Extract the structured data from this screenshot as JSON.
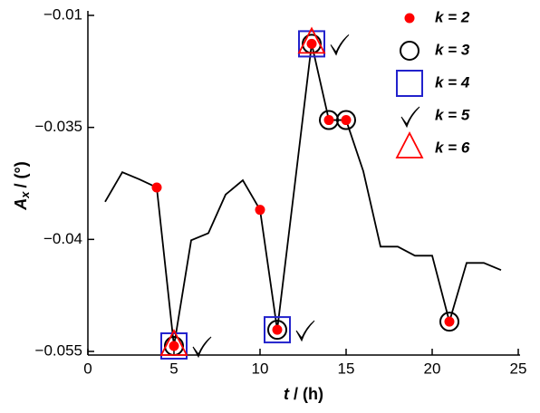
{
  "chart_data": {
    "type": "line",
    "xlabel": [
      "t",
      "/ (h)"
    ],
    "ylabel": [
      "A",
      "x",
      "/ (°)"
    ],
    "xlim": [
      0,
      25
    ],
    "xticks": [
      0,
      5,
      10,
      15,
      20,
      25
    ],
    "ylim": [
      -0.055,
      -0.01
    ],
    "yticks": [
      {
        "value": -0.055,
        "label": "−0.055"
      },
      {
        "value": -0.04,
        "label": "−0.04"
      },
      {
        "value": -0.035,
        "label": "−0.035"
      },
      {
        "value": -0.01,
        "label": "−0.01"
      }
    ],
    "legend": "upper right",
    "series": [
      {
        "color": "#000000",
        "marker": "none",
        "x": [
          1,
          2,
          3,
          4,
          5,
          6,
          7,
          8,
          9,
          10,
          11,
          12,
          13,
          14,
          15,
          16,
          17,
          18,
          19,
          20,
          21,
          22,
          23,
          24
        ],
        "values": [
          -0.03832,
          -0.037,
          -0.03732,
          -0.03768,
          -0.05427,
          -0.04012,
          -0.03972,
          -0.038,
          -0.03736,
          -0.03868,
          -0.0521,
          -0.03768,
          -0.01635,
          -0.03336,
          -0.03336,
          -0.03696,
          -0.04097,
          -0.04097,
          -0.04218,
          -0.04218,
          -0.05101,
          -0.04315,
          -0.04315,
          -0.04411
        ]
      },
      {
        "name": "k = 2",
        "marker": "dot",
        "color": "#ff0000",
        "x": [
          4,
          5,
          10,
          11,
          13,
          14,
          15,
          21
        ],
        "values": [
          -0.03768,
          -0.05427,
          -0.03868,
          -0.0521,
          -0.01635,
          -0.03336,
          -0.03336,
          -0.05101
        ]
      },
      {
        "name": "k = 3",
        "marker": "circle",
        "color": "#000000",
        "x": [
          5,
          11,
          13,
          14,
          15,
          21
        ],
        "values": [
          -0.05427,
          -0.0521,
          -0.01635,
          -0.03336,
          -0.03336,
          -0.05101
        ]
      },
      {
        "name": "k = 4",
        "marker": "square",
        "color": "#2222cc",
        "x": [
          5,
          11,
          13
        ],
        "values": [
          -0.05427,
          -0.0521,
          -0.01635
        ]
      },
      {
        "name": "k = 5",
        "marker": "check",
        "color": "#000000",
        "x": [
          5,
          11,
          13
        ],
        "values": [
          -0.05427,
          -0.0521,
          -0.01635
        ]
      },
      {
        "name": "k = 6",
        "marker": "triangle",
        "color": "#ff0000",
        "x": [
          5,
          13
        ],
        "values": [
          -0.05427,
          -0.01635
        ]
      }
    ]
  }
}
